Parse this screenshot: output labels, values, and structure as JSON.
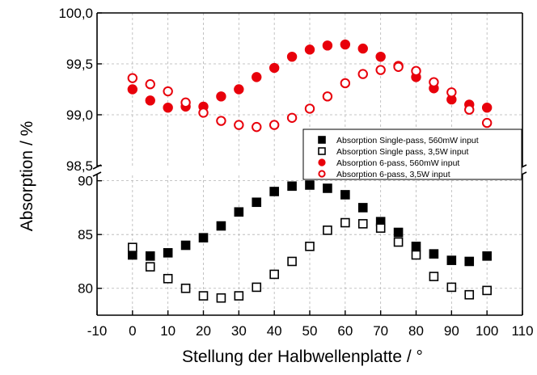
{
  "chart_data": {
    "type": "scatter",
    "xlabel": "Stellung der Halbwellenplatte / °",
    "ylabel": "Absorption / %",
    "xlim": [
      -10,
      110
    ],
    "xticks": [
      "-10",
      "0",
      "10",
      "20",
      "30",
      "40",
      "50",
      "60",
      "70",
      "80",
      "90",
      "100",
      "110"
    ],
    "broken_y_axis": true,
    "upper_panel": {
      "ylim": [
        98.5,
        100.0
      ],
      "yticks": [
        "98,5",
        "99,0",
        "99,5",
        "100,0"
      ]
    },
    "lower_panel": {
      "ylim": [
        77.5,
        90.5
      ],
      "yticks": [
        "80",
        "85",
        "90"
      ]
    },
    "grid": true,
    "legend_position": "right, inside upper panel",
    "x": [
      0,
      5,
      10,
      15,
      20,
      25,
      30,
      35,
      40,
      45,
      50,
      55,
      60,
      65,
      70,
      75,
      80,
      85,
      90,
      95,
      100
    ],
    "series": [
      {
        "name": "Absorption Single-pass, 560mW input",
        "panel": "lower",
        "marker": "filled-square",
        "color": "#000000",
        "values": [
          83.1,
          83.0,
          83.3,
          84.0,
          84.7,
          85.8,
          87.1,
          88.0,
          89.0,
          89.5,
          89.6,
          89.3,
          88.7,
          87.5,
          86.2,
          85.2,
          83.9,
          83.2,
          82.6,
          82.5,
          83.0
        ]
      },
      {
        "name": "Absorption Single pass, 3,5W input",
        "panel": "lower",
        "marker": "open-square",
        "color": "#000000",
        "values": [
          83.8,
          82.0,
          80.9,
          80.0,
          79.3,
          79.1,
          79.3,
          80.1,
          81.3,
          82.5,
          83.9,
          85.4,
          86.1,
          86.0,
          85.6,
          84.3,
          83.1,
          81.1,
          80.1,
          79.4,
          79.8
        ]
      },
      {
        "name": "Absorption 6-pass, 560mW input",
        "panel": "upper",
        "marker": "filled-circle",
        "color": "#e8000b",
        "values": [
          99.25,
          99.14,
          99.07,
          99.08,
          99.08,
          99.18,
          99.25,
          99.37,
          99.46,
          99.57,
          99.64,
          99.68,
          99.69,
          99.65,
          99.57,
          99.48,
          99.37,
          99.26,
          99.15,
          99.1,
          99.07
        ]
      },
      {
        "name": "Absorption 6-pass, 3,5W input",
        "panel": "upper",
        "marker": "open-circle",
        "color": "#e8000b",
        "values": [
          99.36,
          99.3,
          99.23,
          99.12,
          99.02,
          98.94,
          98.9,
          98.88,
          98.9,
          98.97,
          99.06,
          99.18,
          99.31,
          99.4,
          99.44,
          99.47,
          99.43,
          99.32,
          99.22,
          99.05,
          98.92
        ]
      }
    ]
  }
}
